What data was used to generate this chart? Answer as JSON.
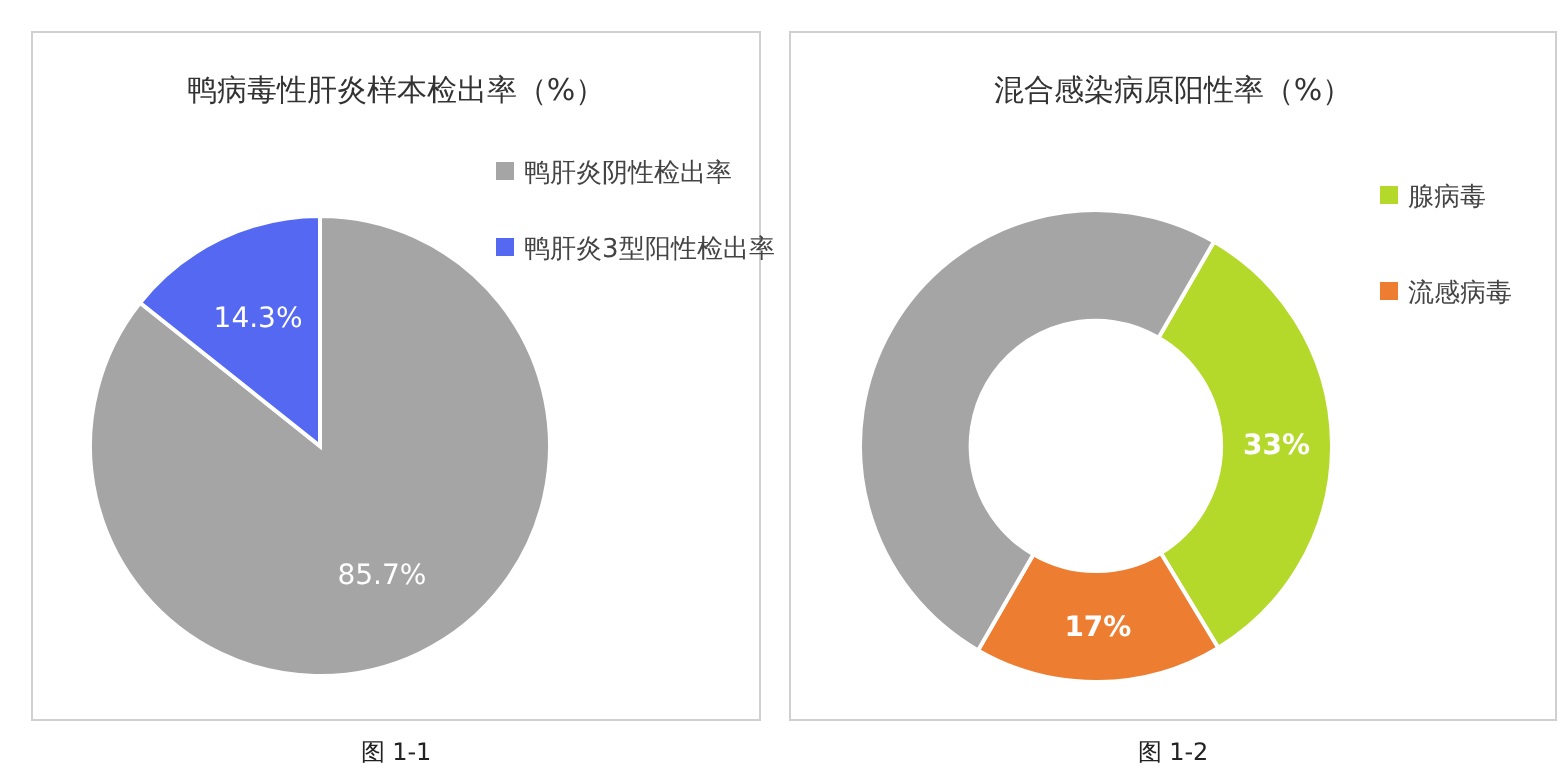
{
  "chart_data": [
    {
      "type": "pie",
      "title": "鸭病毒性肝炎样本检出率（%）",
      "categories": [
        "鸭肝炎阴性检出率",
        "鸭肝炎3型阳性检出率"
      ],
      "values": [
        85.7,
        14.3
      ],
      "colors": [
        "#a5a5a5",
        "#5468f2"
      ],
      "data_labels": true,
      "value_labels": [
        "85.7%",
        "14.3%"
      ],
      "legend": "right",
      "annotations": [
        "图 1-1"
      ]
    },
    {
      "type": "donut",
      "title": "混合感染病原阳性率（%）",
      "categories": [
        "腺病毒",
        "流感病毒",
        null
      ],
      "values": [
        33,
        17,
        50
      ],
      "colors": [
        "#b4d92b",
        "#ed7d31",
        "#a5a5a5"
      ],
      "data_labels": true,
      "value_labels": [
        "33%",
        "17%",
        null
      ],
      "legend": "top right",
      "annotations": [
        "图 1-2"
      ]
    }
  ]
}
